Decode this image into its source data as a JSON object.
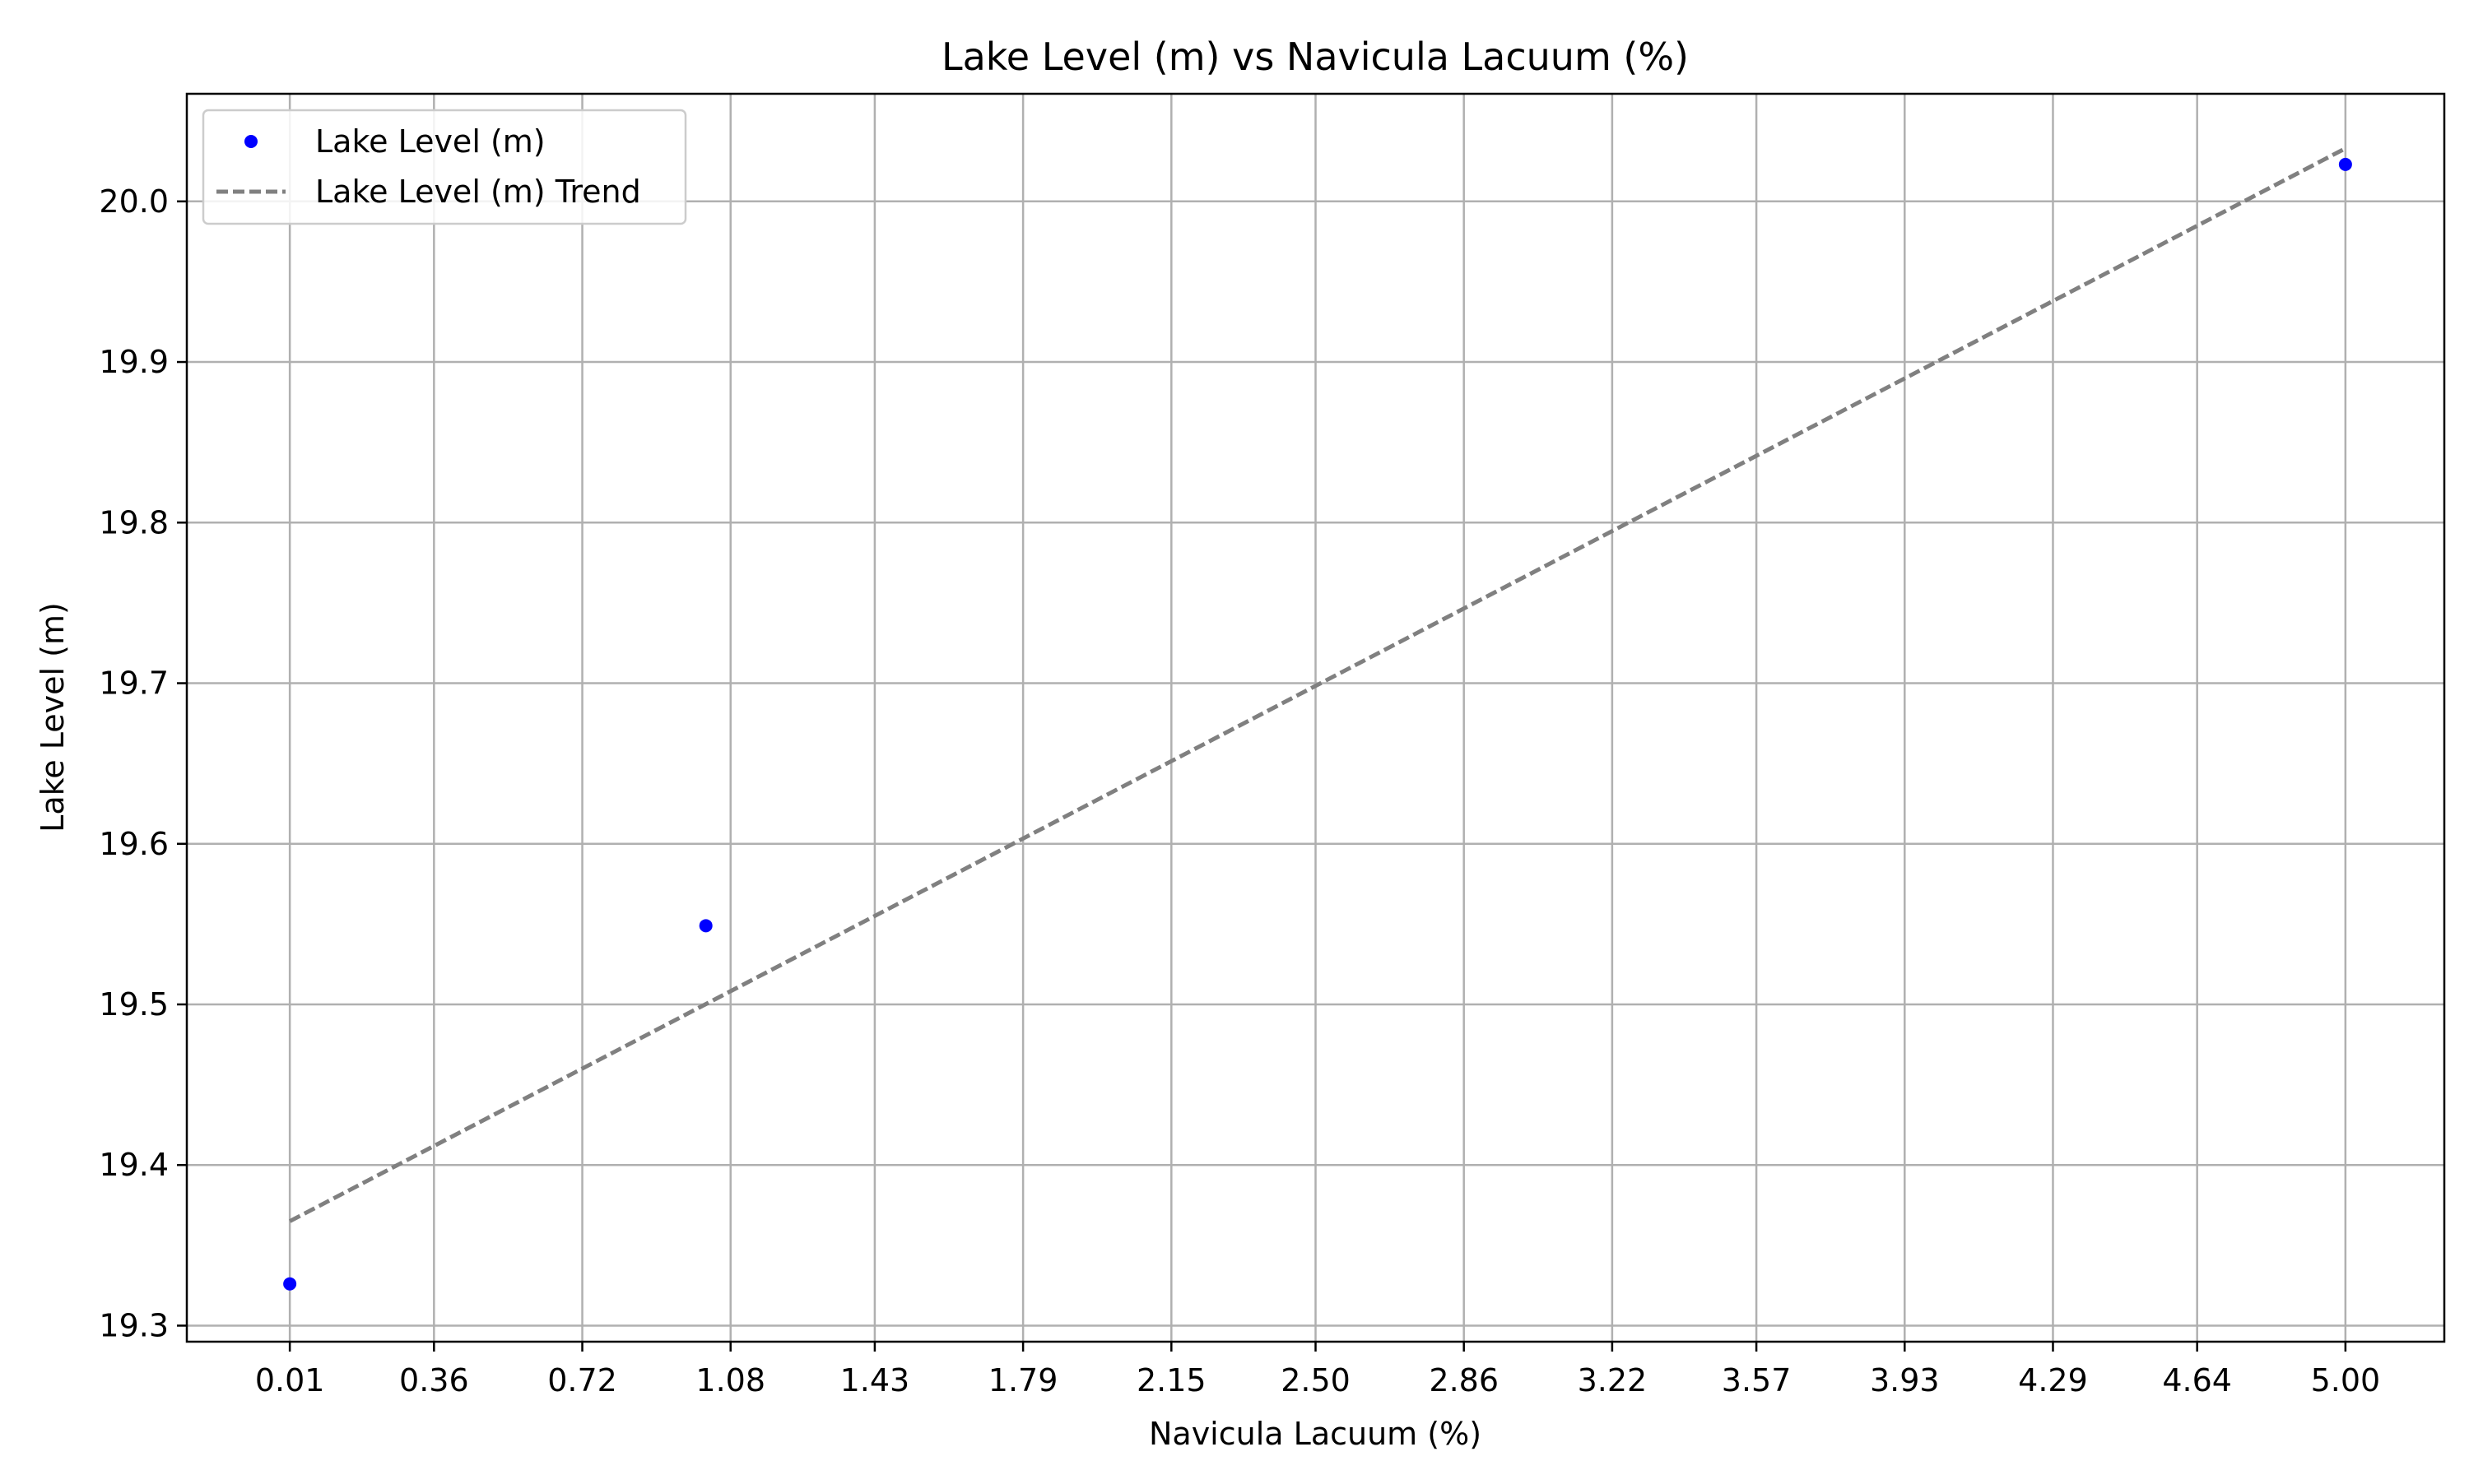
{
  "chart_data": {
    "type": "scatter",
    "title": "Lake Level (m) vs Navicula Lacuum (%)",
    "xlabel": "Navicula Lacuum (%)",
    "ylabel": "Lake Level (m)",
    "xlim": [
      -0.24,
      5.24
    ],
    "ylim": [
      19.29,
      20.067
    ],
    "x_ticks": [
      "0.01",
      "0.36",
      "0.72",
      "1.08",
      "1.43",
      "1.79",
      "2.15",
      "2.50",
      "2.86",
      "3.22",
      "3.57",
      "3.93",
      "4.29",
      "4.64",
      "5.00"
    ],
    "y_ticks": [
      "19.3",
      "19.4",
      "19.5",
      "19.6",
      "19.7",
      "19.8",
      "19.9",
      "20.0"
    ],
    "grid": true,
    "legend_position": "top-left",
    "series": [
      {
        "name": "Lake Level (m)",
        "kind": "scatter",
        "color": "#0000ff",
        "points": [
          {
            "x": 0.01,
            "y": 19.326
          },
          {
            "x": 1.02,
            "y": 19.549
          },
          {
            "x": 5.0,
            "y": 20.023
          }
        ]
      },
      {
        "name": "Lake Level (m) Trend",
        "kind": "line",
        "style": "dashed",
        "color": "#808080",
        "points": [
          {
            "x": 0.01,
            "y": 19.365
          },
          {
            "x": 5.0,
            "y": 20.033
          }
        ]
      }
    ]
  }
}
